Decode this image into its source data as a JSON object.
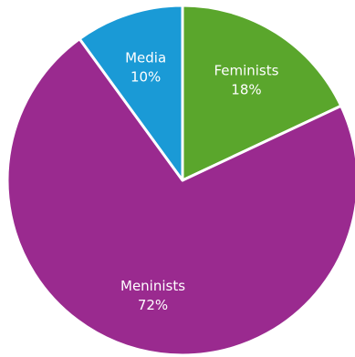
{
  "chart_data": {
    "type": "pie",
    "title": "",
    "legend": "none",
    "slices": [
      {
        "label": "Feminists",
        "value": 18,
        "value_label": "18%",
        "color": "#5aa62c"
      },
      {
        "label": "Meninists",
        "value": 72,
        "value_label": "72%",
        "color": "#9a2a8f"
      },
      {
        "label": "Media",
        "value": 10,
        "value_label": "10%",
        "color": "#1a9ad6"
      }
    ],
    "start_angle_deg": 0,
    "direction": "clockwise",
    "slice_border_color": "#ffffff"
  }
}
